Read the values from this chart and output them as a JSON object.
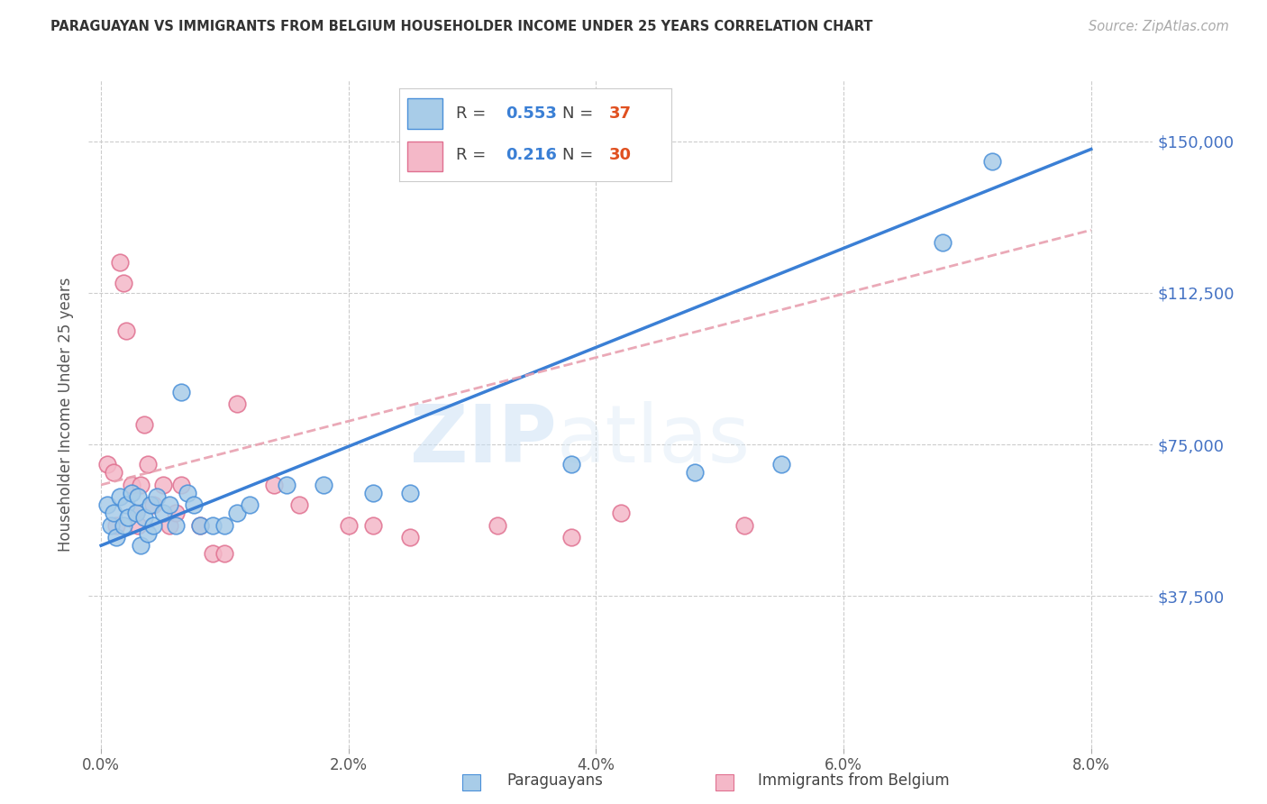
{
  "title": "PARAGUAYAN VS IMMIGRANTS FROM BELGIUM HOUSEHOLDER INCOME UNDER 25 YEARS CORRELATION CHART",
  "source_text": "Source: ZipAtlas.com",
  "ylabel": "Householder Income Under 25 years",
  "ylim": [
    0,
    165000
  ],
  "xlim": [
    -0.1,
    8.5
  ],
  "ytick_vals": [
    0,
    37500,
    75000,
    112500,
    150000
  ],
  "ytick_labels": [
    "",
    "$37,500",
    "$75,000",
    "$112,500",
    "$150,000"
  ],
  "blue_color": "#a8cce8",
  "pink_color": "#f4b8c8",
  "blue_edge_color": "#4a90d9",
  "pink_edge_color": "#e07090",
  "blue_line_color": "#3a7fd5",
  "pink_line_color": "#e8a0b0",
  "legend_R1": "0.553",
  "legend_N1": "37",
  "legend_R2": "0.216",
  "legend_N2": "30",
  "legend_label1": "Paraguayans",
  "legend_label2": "Immigrants from Belgium",
  "watermark_zip": "ZIP",
  "watermark_atlas": "atlas",
  "blue_scatter_x": [
    0.05,
    0.08,
    0.1,
    0.12,
    0.15,
    0.18,
    0.2,
    0.22,
    0.25,
    0.28,
    0.3,
    0.32,
    0.35,
    0.38,
    0.4,
    0.42,
    0.45,
    0.5,
    0.55,
    0.6,
    0.65,
    0.7,
    0.75,
    0.8,
    0.9,
    1.0,
    1.1,
    1.2,
    1.5,
    1.8,
    2.2,
    2.5,
    3.8,
    4.8,
    5.5,
    6.8,
    7.2
  ],
  "blue_scatter_y": [
    60000,
    55000,
    58000,
    52000,
    62000,
    55000,
    60000,
    57000,
    63000,
    58000,
    62000,
    50000,
    57000,
    53000,
    60000,
    55000,
    62000,
    58000,
    60000,
    55000,
    88000,
    63000,
    60000,
    55000,
    55000,
    55000,
    58000,
    60000,
    65000,
    65000,
    63000,
    63000,
    70000,
    68000,
    70000,
    125000,
    145000
  ],
  "pink_scatter_x": [
    0.05,
    0.1,
    0.12,
    0.15,
    0.18,
    0.2,
    0.25,
    0.28,
    0.3,
    0.32,
    0.35,
    0.38,
    0.42,
    0.5,
    0.55,
    0.6,
    0.65,
    0.8,
    0.9,
    1.0,
    1.1,
    1.4,
    1.6,
    2.0,
    2.2,
    2.5,
    3.2,
    3.8,
    4.2,
    5.2
  ],
  "pink_scatter_y": [
    70000,
    68000,
    55000,
    120000,
    115000,
    103000,
    65000,
    58000,
    55000,
    65000,
    80000,
    70000,
    60000,
    65000,
    55000,
    58000,
    65000,
    55000,
    48000,
    48000,
    85000,
    65000,
    60000,
    55000,
    55000,
    52000,
    55000,
    52000,
    58000,
    55000
  ],
  "blue_line_x0": 0.0,
  "blue_line_y0": 50000,
  "blue_line_x1": 8.0,
  "blue_line_y1": 148000,
  "pink_line_x0": 0.0,
  "pink_line_y0": 65000,
  "pink_line_x1": 8.0,
  "pink_line_y1": 128000
}
